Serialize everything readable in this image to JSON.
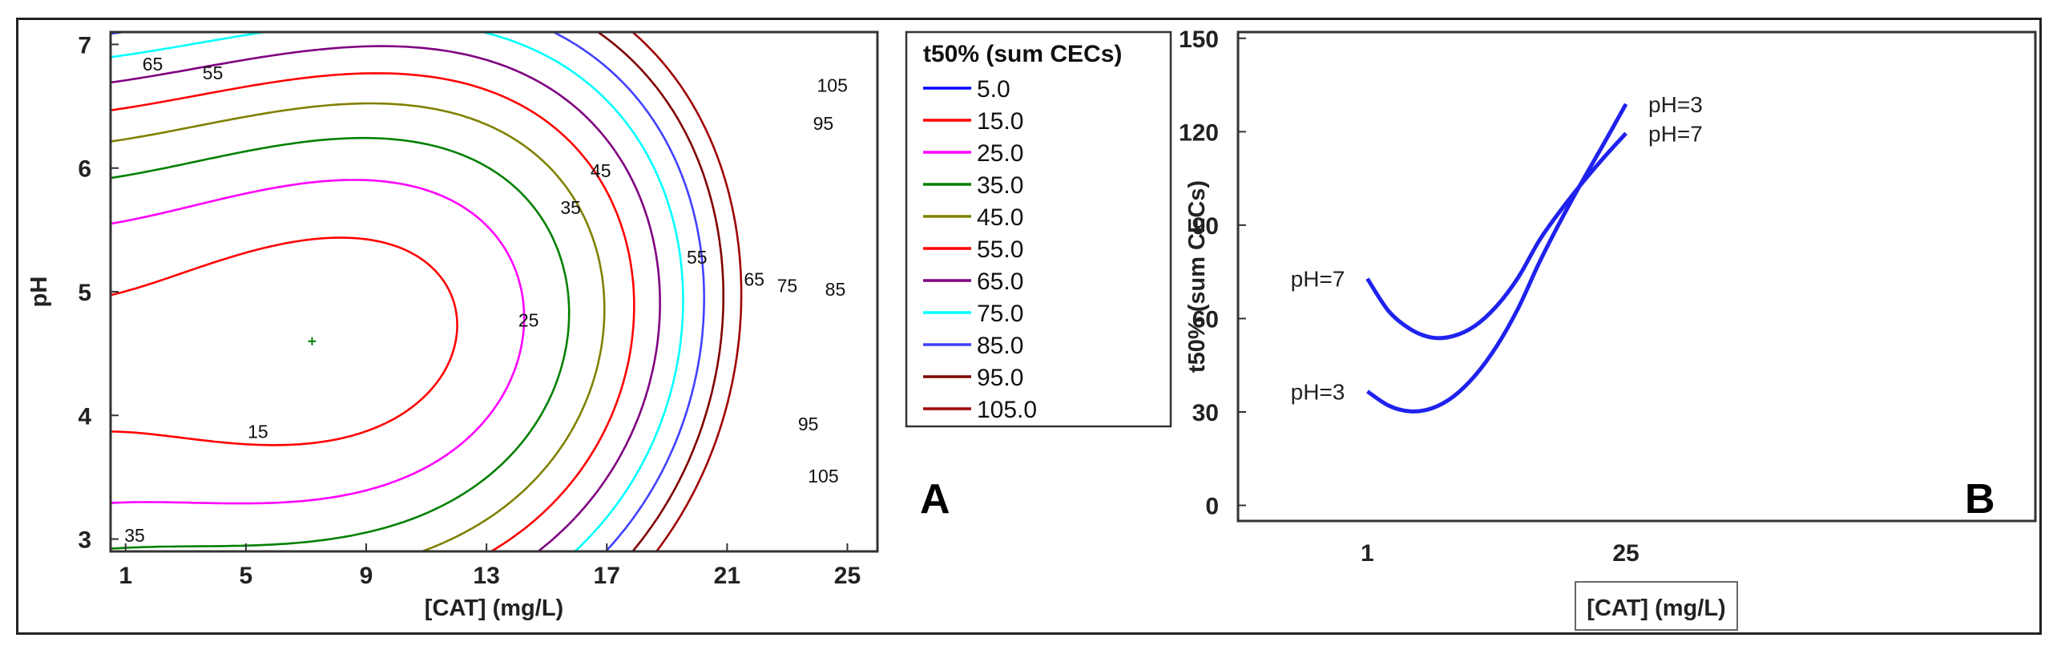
{
  "chart_data": [
    {
      "type": "contour",
      "panel_label": "A",
      "xlabel": "[CAT] (mg/L)",
      "ylabel": "pH",
      "xlim": [
        0.5,
        26.0
      ],
      "ylim": [
        2.9,
        7.1
      ],
      "xticks": [
        1,
        5,
        9,
        13,
        17,
        21,
        25
      ],
      "yticks": [
        3,
        4,
        5,
        6,
        7
      ],
      "legend_title": "t50% (sum CECs)",
      "legend_placement": "right",
      "levels": [
        {
          "value": 5,
          "label": "5.0",
          "color": "#0000ff"
        },
        {
          "value": 15,
          "label": "15.0",
          "color": "#ff0000"
        },
        {
          "value": 25,
          "label": "25.0",
          "color": "#ff00ff"
        },
        {
          "value": 35,
          "label": "35.0",
          "color": "#008000"
        },
        {
          "value": 45,
          "label": "45.0",
          "color": "#808000"
        },
        {
          "value": 55,
          "label": "55.0",
          "color": "#ff0000"
        },
        {
          "value": 65,
          "label": "65.0",
          "color": "#800080"
        },
        {
          "value": 75,
          "label": "75.0",
          "color": "#00ffff"
        },
        {
          "value": 85,
          "label": "85.0",
          "color": "#4040ff"
        },
        {
          "value": 95,
          "label": "95.0",
          "color": "#800000"
        },
        {
          "value": 105,
          "label": "105.0",
          "color": "#a00000"
        }
      ],
      "minimum_point": {
        "x": 7.2,
        "y": 4.6
      },
      "contour_labels": [
        {
          "text": "65",
          "x": 1.9,
          "y": 6.84
        },
        {
          "text": "55",
          "x": 3.9,
          "y": 6.77
        },
        {
          "text": "45",
          "x": 16.8,
          "y": 5.98
        },
        {
          "text": "35",
          "x": 15.8,
          "y": 5.68
        },
        {
          "text": "25",
          "x": 14.4,
          "y": 4.77
        },
        {
          "text": "15",
          "x": 5.4,
          "y": 3.87
        },
        {
          "text": "35",
          "x": 1.3,
          "y": 3.03
        },
        {
          "text": "55",
          "x": 20.0,
          "y": 5.28
        },
        {
          "text": "65",
          "x": 21.9,
          "y": 5.1
        },
        {
          "text": "75",
          "x": 23.0,
          "y": 5.05
        },
        {
          "text": "85",
          "x": 24.6,
          "y": 5.02
        },
        {
          "text": "105",
          "x": 24.5,
          "y": 6.67
        },
        {
          "text": "95",
          "x": 24.2,
          "y": 6.36
        },
        {
          "text": "95",
          "x": 23.7,
          "y": 3.93
        },
        {
          "text": "105",
          "x": 24.2,
          "y": 3.51
        }
      ]
    },
    {
      "type": "line",
      "panel_label": "B",
      "xlabel": "[CAT] (mg/L)",
      "ylabel": "t50% (sum CECs)",
      "xlim": [
        -11.0,
        63.0
      ],
      "ylim": [
        -5,
        152
      ],
      "xticks": [
        1,
        25
      ],
      "yticks": [
        0,
        30,
        60,
        90,
        120,
        150
      ],
      "series": [
        {
          "name": "pH=7",
          "x": [
            1,
            3,
            5,
            7,
            9,
            11,
            13,
            15,
            17,
            19,
            21,
            23,
            25
          ],
          "values": [
            72.8,
            62.3,
            56.6,
            53.9,
            54.4,
            57.7,
            64.0,
            73.2,
            85.3,
            95.0,
            103.8,
            111.9,
            119.5
          ],
          "end_label": "pH=7",
          "start_label": "pH=7",
          "color": "#1f22ee"
        },
        {
          "name": "pH=3",
          "x": [
            1,
            3,
            5,
            7,
            9,
            11,
            13,
            15,
            17,
            19,
            21,
            23,
            25
          ],
          "values": [
            36.6,
            32.0,
            30.2,
            31.2,
            35.0,
            41.7,
            51.1,
            63.3,
            78.3,
            91.8,
            104.4,
            116.5,
            128.9
          ],
          "end_label": "pH=3",
          "start_label": "pH=3",
          "color": "#1f22ee"
        }
      ]
    }
  ]
}
